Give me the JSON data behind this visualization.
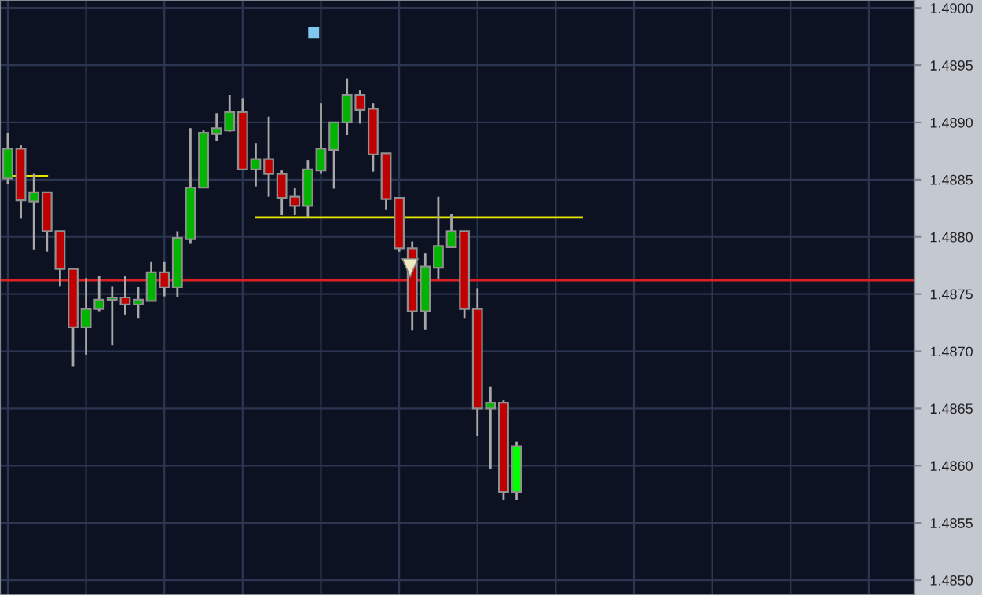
{
  "chart_data": {
    "type": "candlestick",
    "categories": [
      null,
      null,
      null,
      null,
      null,
      null,
      null,
      null,
      null,
      null,
      null,
      null,
      null,
      null,
      null,
      null,
      null,
      null,
      null,
      null,
      null,
      null,
      null,
      null,
      null,
      null,
      null,
      null,
      null,
      null,
      null,
      null,
      null,
      null,
      null,
      null,
      null,
      null,
      null,
      null,
      null,
      null,
      null,
      null,
      null,
      null,
      null,
      null,
      null,
      null,
      null,
      null,
      null,
      null,
      null,
      null,
      null,
      null,
      null,
      null,
      null,
      null,
      null,
      null,
      null,
      null,
      null,
      null,
      null,
      null
    ],
    "ohlc": [
      [
        1.48851,
        1.48891,
        1.48846,
        1.48877
      ],
      [
        1.48877,
        1.4888,
        1.48816,
        1.48832
      ],
      [
        1.48831,
        1.48855,
        1.48789,
        1.48839
      ],
      [
        1.48839,
        1.48839,
        1.48787,
        1.48805
      ],
      [
        1.48805,
        1.48805,
        1.48757,
        1.48772
      ],
      [
        1.48772,
        1.48772,
        1.48687,
        1.48721
      ],
      [
        1.48721,
        1.48764,
        1.48697,
        1.48737
      ],
      [
        1.48737,
        1.48766,
        1.48735,
        1.48745
      ],
      [
        1.48745,
        1.48757,
        1.48705,
        1.48747
      ],
      [
        1.48747,
        1.48766,
        1.48732,
        1.48741
      ],
      [
        1.48741,
        1.48756,
        1.48729,
        1.48745
      ],
      [
        1.48744,
        1.48778,
        1.48744,
        1.48769
      ],
      [
        1.48769,
        1.48778,
        1.48748,
        1.48756
      ],
      [
        1.48756,
        1.48805,
        1.48747,
        1.48799
      ],
      [
        1.48798,
        1.48895,
        1.48794,
        1.48843
      ],
      [
        1.48843,
        1.48893,
        1.48843,
        1.48891
      ],
      [
        1.4889,
        1.48908,
        1.48884,
        1.48895
      ],
      [
        1.48893,
        1.48924,
        1.48892,
        1.48909
      ],
      [
        1.48909,
        1.48921,
        1.48859,
        1.48859
      ],
      [
        1.48859,
        1.48882,
        1.48844,
        1.48868
      ],
      [
        1.48868,
        1.48905,
        1.48835,
        1.48855
      ],
      [
        1.48855,
        1.48858,
        1.48819,
        1.48834
      ],
      [
        1.48835,
        1.48843,
        1.48819,
        1.48827
      ],
      [
        1.48827,
        1.48867,
        1.48817,
        1.48859
      ],
      [
        1.48858,
        1.48917,
        1.48855,
        1.48877
      ],
      [
        1.48876,
        1.489,
        1.48842,
        1.489
      ],
      [
        1.489,
        1.48938,
        1.48889,
        1.48924
      ],
      [
        1.48924,
        1.48928,
        1.48899,
        1.48911
      ],
      [
        1.48912,
        1.48917,
        1.48857,
        1.48872
      ],
      [
        1.48873,
        1.48873,
        1.48824,
        1.48833
      ],
      [
        1.48834,
        1.48834,
        1.48787,
        1.4879
      ],
      [
        1.4879,
        1.48796,
        1.48718,
        1.48735
      ],
      [
        1.48735,
        1.48786,
        1.48719,
        1.48774
      ],
      [
        1.48773,
        1.48835,
        1.48763,
        1.48792
      ],
      [
        1.48791,
        1.4882,
        1.48791,
        1.48805
      ],
      [
        1.48805,
        1.48805,
        1.48729,
        1.48737
      ],
      [
        1.48737,
        1.48755,
        1.48626,
        1.4865
      ],
      [
        1.4865,
        1.48669,
        1.48597,
        1.48655
      ],
      [
        1.48655,
        1.48657,
        1.4857,
        1.48577
      ],
      [
        1.48577,
        1.48621,
        1.4857,
        1.48617
      ],
      null,
      null,
      null,
      null,
      null,
      null,
      null,
      null,
      null,
      null,
      null,
      null,
      null,
      null,
      null,
      null,
      null,
      null,
      null,
      null,
      null,
      null,
      null,
      null,
      null,
      null,
      null,
      null,
      null,
      null
    ],
    "colors": [
      "#00b400",
      "#c00000",
      "#00b400",
      "#c00000",
      "#c00000",
      "#c00000",
      "#00b400",
      "#00b400",
      "#00b400",
      "#c00000",
      "#00b400",
      "#00b400",
      "#c00000",
      "#00b400",
      "#00b400",
      "#00b400",
      "#00b400",
      "#00b400",
      "#c00000",
      "#00b400",
      "#c00000",
      "#c00000",
      "#c00000",
      "#00b400",
      "#00b400",
      "#00b400",
      "#00b400",
      "#c00000",
      "#c00000",
      "#c00000",
      "#c00000",
      "#c00000",
      "#00b400",
      "#00b400",
      "#00b400",
      "#c00000",
      "#c00000",
      "#00b400",
      "#c00000",
      "#00ff00",
      null,
      null,
      null,
      null,
      null,
      null,
      null,
      null,
      null,
      null,
      null,
      null,
      null,
      null,
      null,
      null,
      null,
      null,
      null,
      null,
      null,
      null,
      null,
      null,
      null,
      null,
      null,
      null,
      null,
      null
    ],
    "series": [
      {
        "type": "line",
        "color": "#e6e600",
        "values": [
          null,
          null,
          null,
          null,
          null,
          null,
          null,
          null,
          null,
          null,
          null,
          null,
          null,
          null,
          null,
          null,
          null,
          null,
          null,
          1.48817,
          1.48817,
          1.48817,
          1.48817,
          1.48817,
          1.48817,
          1.48817,
          1.48817,
          1.48817,
          1.48817,
          1.48817,
          1.48817,
          1.48817,
          1.48817,
          1.48817,
          1.48817,
          1.48817,
          1.48817,
          1.48817,
          1.48817,
          1.48817,
          1.48817,
          1.48817,
          1.48817,
          1.48817,
          1.48817,
          null,
          null,
          null,
          null,
          null,
          null,
          null,
          null,
          null,
          null,
          null,
          null,
          null,
          null,
          null,
          null,
          null,
          null,
          null,
          null,
          null,
          null,
          null,
          null,
          null
        ]
      },
      {
        "type": "line",
        "color": "#e6e600",
        "values": [
          1.48853,
          1.48853,
          1.48853,
          1.48853,
          null,
          null,
          null,
          null,
          null,
          null,
          null,
          null,
          null,
          null,
          null,
          null,
          null,
          null,
          null,
          null,
          null,
          null,
          null,
          null,
          null,
          null,
          null,
          null,
          null,
          null,
          null,
          null,
          null,
          null,
          null,
          null,
          null,
          null,
          null,
          null,
          null,
          null,
          null,
          null,
          null,
          null,
          null,
          null,
          null,
          null,
          null,
          null,
          null,
          null,
          null,
          null,
          null,
          null,
          null,
          null,
          null,
          null,
          null,
          null,
          null,
          null,
          null,
          null,
          null,
          null
        ]
      }
    ],
    "ref_lines": [
      {
        "axis": "y",
        "value": 1.48762,
        "color": "#e02020"
      }
    ],
    "ylim": [
      1.48487,
      1.49007
    ],
    "yticks": [
      {
        "value": 1.49,
        "label": "1.4900"
      },
      {
        "value": 1.4895,
        "label": "1.4895"
      },
      {
        "value": 1.489,
        "label": "1.4890"
      },
      {
        "value": 1.4885,
        "label": "1.4885"
      },
      {
        "value": 1.488,
        "label": "1.4880"
      },
      {
        "value": 1.4875,
        "label": "1.4875"
      },
      {
        "value": 1.487,
        "label": "1.4870"
      },
      {
        "value": 1.4865,
        "label": "1.4865"
      },
      {
        "value": 1.486,
        "label": "1.4860"
      },
      {
        "value": 1.4855,
        "label": "1.4855"
      },
      {
        "value": 1.485,
        "label": "1.4850"
      }
    ],
    "tick_labels": "y",
    "grid": true
  }
}
